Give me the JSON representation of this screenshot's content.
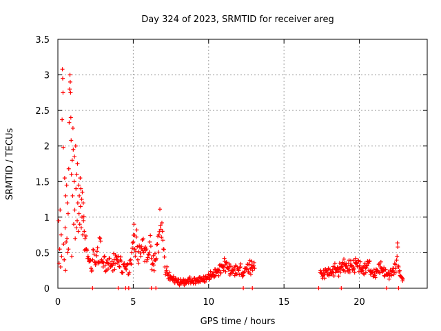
{
  "chart_data": {
    "type": "scatter",
    "title": "Day 324 of 2023, SRMTID for receiver areg",
    "xlabel": "GPS time / hours",
    "ylabel": "SRMTID / TECUs",
    "xlim": [
      0,
      24.5
    ],
    "ylim": [
      0,
      3.5
    ],
    "grid": true,
    "marker": "+",
    "x_ticks": [
      0,
      5,
      10,
      15,
      20
    ],
    "y_ticks": [
      0,
      0.5,
      1,
      1.5,
      2,
      2.5,
      3,
      3.5
    ],
    "series": [
      {
        "name": "SRMTID",
        "color": "#ff0000",
        "points": [
          [
            0.05,
            0.95
          ],
          [
            0.08,
            0.35
          ],
          [
            0.12,
            0.55
          ],
          [
            0.15,
            1.1
          ],
          [
            0.18,
            0.3
          ],
          [
            0.22,
            0.75
          ],
          [
            0.25,
            0.45
          ],
          [
            0.28,
            2.37
          ],
          [
            0.3,
            3.08
          ],
          [
            0.32,
            2.95
          ],
          [
            0.34,
            2.75
          ],
          [
            0.36,
            1.98
          ],
          [
            0.38,
            0.62
          ],
          [
            0.42,
            0.4
          ],
          [
            0.45,
            1.55
          ],
          [
            0.48,
            0.85
          ],
          [
            0.5,
            0.25
          ],
          [
            0.52,
            1.3
          ],
          [
            0.55,
            0.65
          ],
          [
            0.58,
            1.45
          ],
          [
            0.6,
            0.7
          ],
          [
            0.62,
            1.2
          ],
          [
            0.65,
            0.5
          ],
          [
            0.68,
            1.05
          ],
          [
            0.7,
            0.55
          ],
          [
            0.72,
            1.68
          ],
          [
            0.75,
            2.33
          ],
          [
            0.78,
            2.8
          ],
          [
            0.8,
            3.0
          ],
          [
            0.82,
            2.9
          ],
          [
            0.84,
            2.75
          ],
          [
            0.86,
            2.4
          ],
          [
            0.88,
            2.08
          ],
          [
            0.9,
            1.6
          ],
          [
            0.92,
            0.45
          ],
          [
            0.95,
            1.8
          ],
          [
            0.98,
            1.3
          ],
          [
            1.0,
            2.25
          ],
          [
            1.02,
            1.95
          ],
          [
            1.05,
            0.9
          ],
          [
            1.08,
            1.5
          ],
          [
            1.1,
            1.85
          ],
          [
            1.12,
            1.1
          ],
          [
            1.15,
            0.7
          ],
          [
            1.18,
            2.0
          ],
          [
            1.2,
            1.4
          ],
          [
            1.22,
            0.85
          ],
          [
            1.25,
            1.6
          ],
          [
            1.28,
            0.95
          ],
          [
            1.3,
            1.75
          ],
          [
            1.32,
            1.2
          ],
          [
            1.35,
            0.8
          ],
          [
            1.38,
            1.45
          ],
          [
            1.4,
            1.05
          ],
          [
            1.42,
            1.3
          ],
          [
            1.45,
            0.9
          ],
          [
            1.48,
            1.55
          ],
          [
            1.5,
            1.15
          ],
          [
            1.52,
            1.4
          ],
          [
            1.55,
            0.85
          ],
          [
            1.58,
            1.25
          ],
          [
            1.6,
            1.0
          ],
          [
            1.62,
            1.35
          ],
          [
            1.65,
            0.75
          ],
          [
            1.68,
            1.2
          ],
          [
            1.7,
            0.95
          ],
          [
            1.75,
            0.8
          ],
          [
            1.8,
            0.7
          ],
          [
            1.9,
            0.55
          ],
          [
            2.0,
            0.45
          ],
          [
            2.1,
            0.38
          ],
          [
            2.2,
            0.28
          ],
          [
            2.3,
            0.4
          ],
          [
            2.4,
            0.48
          ],
          [
            2.5,
            0.33
          ],
          [
            2.6,
            0.52
          ],
          [
            2.7,
            0.35
          ],
          [
            2.8,
            0.7
          ],
          [
            2.9,
            0.4
          ],
          [
            3.0,
            0.3
          ],
          [
            3.1,
            0.45
          ],
          [
            3.2,
            0.25
          ],
          [
            3.3,
            0.35
          ],
          [
            3.4,
            0.42
          ],
          [
            3.5,
            0.3
          ],
          [
            4.0,
            0.45
          ],
          [
            4.1,
            0.3
          ],
          [
            4.2,
            0.38
          ],
          [
            4.3,
            0.22
          ],
          [
            4.4,
            0.35
          ],
          [
            4.5,
            0.28
          ],
          [
            4.6,
            0.33
          ],
          [
            4.7,
            0.2
          ],
          [
            4.8,
            0.35
          ],
          [
            4.9,
            0.5
          ],
          [
            5.0,
            0.65
          ],
          [
            5.05,
            0.9
          ],
          [
            5.1,
            0.55
          ],
          [
            5.2,
            0.72
          ],
          [
            5.3,
            0.4
          ],
          [
            5.4,
            0.6
          ],
          [
            5.5,
            0.45
          ],
          [
            5.6,
            0.68
          ],
          [
            5.7,
            0.5
          ],
          [
            5.8,
            0.58
          ],
          [
            5.9,
            0.38
          ],
          [
            6.0,
            0.48
          ],
          [
            6.1,
            0.65
          ],
          [
            6.2,
            0.42
          ],
          [
            6.3,
            0.35
          ],
          [
            6.5,
            0.4
          ],
          [
            6.6,
            0.62
          ],
          [
            6.7,
            0.75
          ],
          [
            6.8,
            0.88
          ],
          [
            6.9,
            0.92
          ],
          [
            7.0,
            0.55
          ],
          [
            7.1,
            0.3
          ],
          [
            7.2,
            0.25
          ],
          [
            7.3,
            0.18
          ],
          [
            7.5,
            0.15
          ],
          [
            7.7,
            0.13
          ],
          [
            7.9,
            0.1
          ],
          [
            8.1,
            0.08
          ],
          [
            8.3,
            0.1
          ],
          [
            8.5,
            0.07
          ],
          [
            8.7,
            0.12
          ],
          [
            8.9,
            0.09
          ],
          [
            9.1,
            0.11
          ],
          [
            9.3,
            0.1
          ],
          [
            9.5,
            0.14
          ],
          [
            9.7,
            0.12
          ],
          [
            9.9,
            0.15
          ],
          [
            10.1,
            0.18
          ],
          [
            10.3,
            0.2
          ],
          [
            10.5,
            0.22
          ],
          [
            10.7,
            0.25
          ],
          [
            10.9,
            0.3
          ],
          [
            11.1,
            0.33
          ],
          [
            11.3,
            0.28
          ],
          [
            11.5,
            0.25
          ],
          [
            12.0,
            0.25
          ],
          [
            12.1,
            0.3
          ],
          [
            12.2,
            0.2
          ],
          [
            12.3,
            0.18
          ],
          [
            12.4,
            0.28
          ],
          [
            12.95,
            0.3
          ],
          [
            13.05,
            0.28
          ],
          [
            17.4,
            0.22
          ],
          [
            17.6,
            0.18
          ],
          [
            17.8,
            0.25
          ],
          [
            18.0,
            0.2
          ],
          [
            18.2,
            0.23
          ],
          [
            18.4,
            0.28
          ],
          [
            18.6,
            0.24
          ],
          [
            18.8,
            0.3
          ],
          [
            19.0,
            0.35
          ],
          [
            19.2,
            0.28
          ],
          [
            19.4,
            0.32
          ],
          [
            19.6,
            0.3
          ],
          [
            19.8,
            0.36
          ],
          [
            20.0,
            0.3
          ],
          [
            20.2,
            0.25
          ],
          [
            20.4,
            0.28
          ],
          [
            20.6,
            0.35
          ],
          [
            20.8,
            0.22
          ],
          [
            21.0,
            0.2
          ],
          [
            21.2,
            0.25
          ],
          [
            21.4,
            0.3
          ],
          [
            21.6,
            0.25
          ],
          [
            21.8,
            0.2
          ],
          [
            22.0,
            0.18
          ],
          [
            22.2,
            0.25
          ],
          [
            22.4,
            0.28
          ],
          [
            22.5,
            0.45
          ],
          [
            22.55,
            0.58
          ],
          [
            22.6,
            0.3
          ],
          [
            22.7,
            0.18
          ],
          [
            22.8,
            0.15
          ],
          [
            22.9,
            0.13
          ]
        ]
      }
    ],
    "zero_points_x": [
      2.3,
      4.0,
      4.5,
      4.7,
      6.2,
      6.5,
      12.3,
      12.9,
      17.3,
      18.8,
      21.8,
      22.6
    ]
  }
}
